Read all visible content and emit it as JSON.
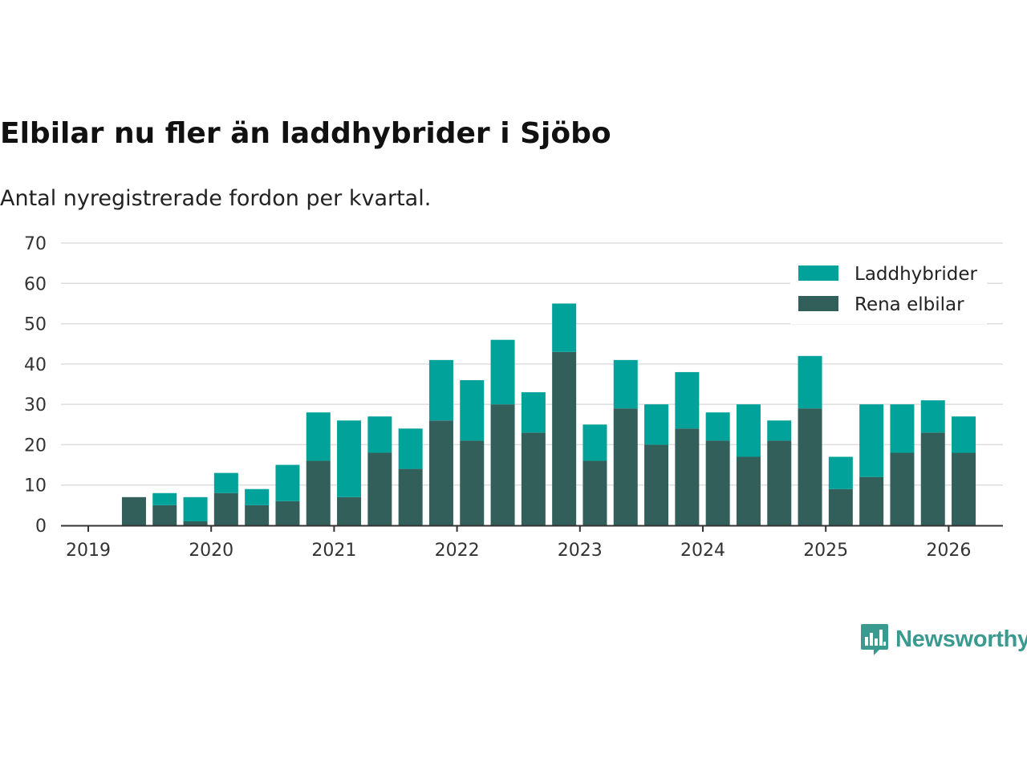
{
  "chart_data": {
    "type": "bar",
    "stacked": true,
    "title": "Elbilar nu fler än laddhybrider i Sjöbo",
    "subtitle": "Antal nyregistrerade fordon per kvartal.",
    "xlabel": "",
    "ylabel": "",
    "ylim": [
      0,
      70
    ],
    "yticks": [
      0,
      10,
      20,
      30,
      40,
      50,
      60,
      70
    ],
    "xticks": [
      "2019",
      "2020",
      "2021",
      "2022",
      "2023",
      "2024",
      "2025",
      "2026"
    ],
    "categories": [
      "2019 Q2",
      "2019 Q3",
      "2019 Q4",
      "2020 Q1",
      "2020 Q2",
      "2020 Q3",
      "2020 Q4",
      "2021 Q1",
      "2021 Q2",
      "2021 Q3",
      "2021 Q4",
      "2022 Q1",
      "2022 Q2",
      "2022 Q3",
      "2022 Q4",
      "2023 Q1",
      "2023 Q2",
      "2023 Q3",
      "2023 Q4",
      "2024 Q1",
      "2024 Q2",
      "2024 Q3",
      "2024 Q4",
      "2025 Q1",
      "2025 Q2",
      "2025 Q3",
      "2025 Q4",
      "2026 Q1"
    ],
    "series": [
      {
        "name": "Rena elbilar",
        "color": "#335f5b",
        "values": [
          7,
          5,
          1,
          8,
          5,
          6,
          16,
          7,
          18,
          14,
          26,
          21,
          30,
          23,
          43,
          16,
          29,
          20,
          24,
          21,
          17,
          21,
          29,
          9,
          12,
          18,
          23,
          18
        ]
      },
      {
        "name": "Laddhybrider",
        "color": "#00a29a",
        "values": [
          0,
          3,
          6,
          5,
          4,
          9,
          12,
          19,
          9,
          10,
          15,
          15,
          16,
          10,
          12,
          9,
          12,
          10,
          14,
          7,
          13,
          5,
          13,
          8,
          18,
          12,
          8,
          9
        ]
      }
    ],
    "legend": [
      "Laddhybrider",
      "Rena elbilar"
    ],
    "legend_position": "top-right",
    "grid": true
  },
  "brand": {
    "name": "Newsworthy",
    "color": "#3b9a8f"
  }
}
